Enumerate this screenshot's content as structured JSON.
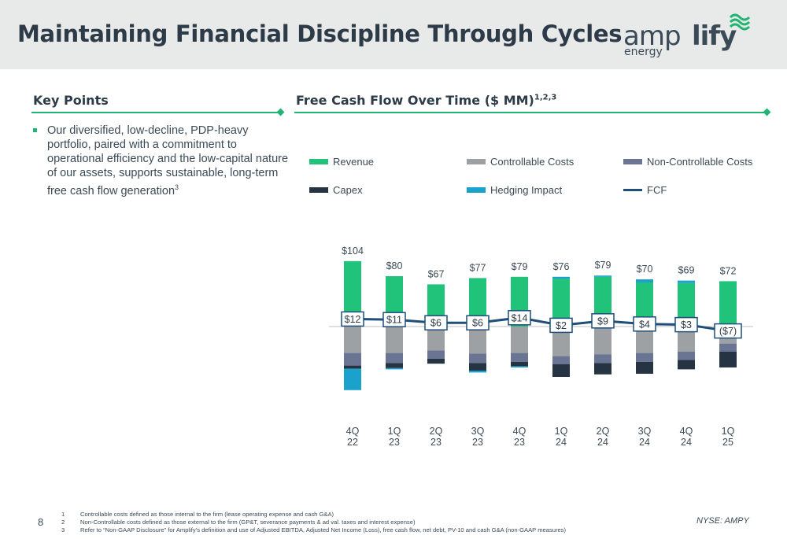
{
  "header": {
    "title": "Maintaining Financial Discipline Through Cycles"
  },
  "logo": {
    "part1": "amp",
    "part2": "lify",
    "sub": "energy",
    "accent_color": "#21b573"
  },
  "key_points": {
    "heading": "Key Points",
    "bullet": "Our diversified, low-decline, PDP-heavy portfolio, paired with a commitment to operational efficiency and the low-capital nature of our assets, supports sustainable, long-term free cash flow generation",
    "bullet_sup": "3"
  },
  "chart_section": {
    "heading": "Free Cash Flow Over Time ($ MM)",
    "heading_sup": "1,2,3"
  },
  "chart_data": {
    "type": "bar",
    "categories": [
      "4Q 22",
      "1Q 23",
      "2Q 23",
      "3Q 23",
      "4Q 23",
      "1Q 24",
      "2Q 24",
      "3Q 24",
      "4Q 24",
      "1Q 25"
    ],
    "category_lines": [
      [
        "4Q",
        "22"
      ],
      [
        "1Q",
        "23"
      ],
      [
        "2Q",
        "23"
      ],
      [
        "3Q",
        "23"
      ],
      [
        "4Q",
        "23"
      ],
      [
        "1Q",
        "24"
      ],
      [
        "2Q",
        "24"
      ],
      [
        "3Q",
        "24"
      ],
      [
        "4Q",
        "24"
      ],
      [
        "1Q",
        "25"
      ]
    ],
    "series": [
      {
        "name": "Revenue",
        "color": "#21c27a",
        "values": [
          104,
          80,
          67,
          77,
          79,
          76,
          79,
          70,
          69,
          72
        ]
      },
      {
        "name": "Controllable Costs",
        "color": "#9ea1a4",
        "values": [
          -42,
          -42,
          -38,
          -43,
          -42,
          -47,
          -44,
          -42,
          -40,
          -27
        ]
      },
      {
        "name": "Non-Controllable Costs",
        "color": "#6a7594",
        "values": [
          -20,
          -16,
          -13,
          -15,
          -14,
          -13,
          -14,
          -14,
          -13,
          -13
        ]
      },
      {
        "name": "Capex",
        "color": "#253342",
        "values": [
          -5,
          -8,
          -8,
          -12,
          -7,
          -20,
          -18,
          -19,
          -15,
          -25
        ]
      },
      {
        "name": "Hedging Impact",
        "color": "#1aa2cc",
        "values": [
          -34,
          -2,
          0,
          -3,
          -2,
          3,
          2,
          5,
          4,
          0
        ]
      },
      {
        "name": "FCF",
        "color": "#1f4e79",
        "values": [
          12,
          11,
          6,
          6,
          14,
          2,
          9,
          4,
          3,
          -7
        ]
      }
    ],
    "revenue_labels": [
      "$104",
      "$80",
      "$67",
      "$77",
      "$79",
      "$76",
      "$79",
      "$70",
      "$69",
      "$72"
    ],
    "fcf_labels": [
      "$12",
      "$11",
      "$6",
      "$6",
      "$14",
      "$2",
      "$9",
      "$4",
      "$3",
      "($7)"
    ],
    "legend_position": "top",
    "grid": false
  },
  "footnotes": {
    "page_number": "8",
    "items": [
      {
        "idx": "1",
        "text": "Controllable costs defined as those internal to the firm (lease operating expense and cash G&A)"
      },
      {
        "idx": "2",
        "text": "Non-Controllable costs defined as those external to the firm (GP&T, severance payments & ad val. taxes and interest expense)"
      },
      {
        "idx": "3",
        "text": "Refer to “Non-GAAP Disclosure” for Amplify’s definition and use of Adjusted EBITDA, Adjusted Net Income (Loss), free cash flow, net debt, PV-10 and cash G&A (non-GAAP measures)"
      }
    ],
    "ticker": "NYSE: AMPY"
  }
}
